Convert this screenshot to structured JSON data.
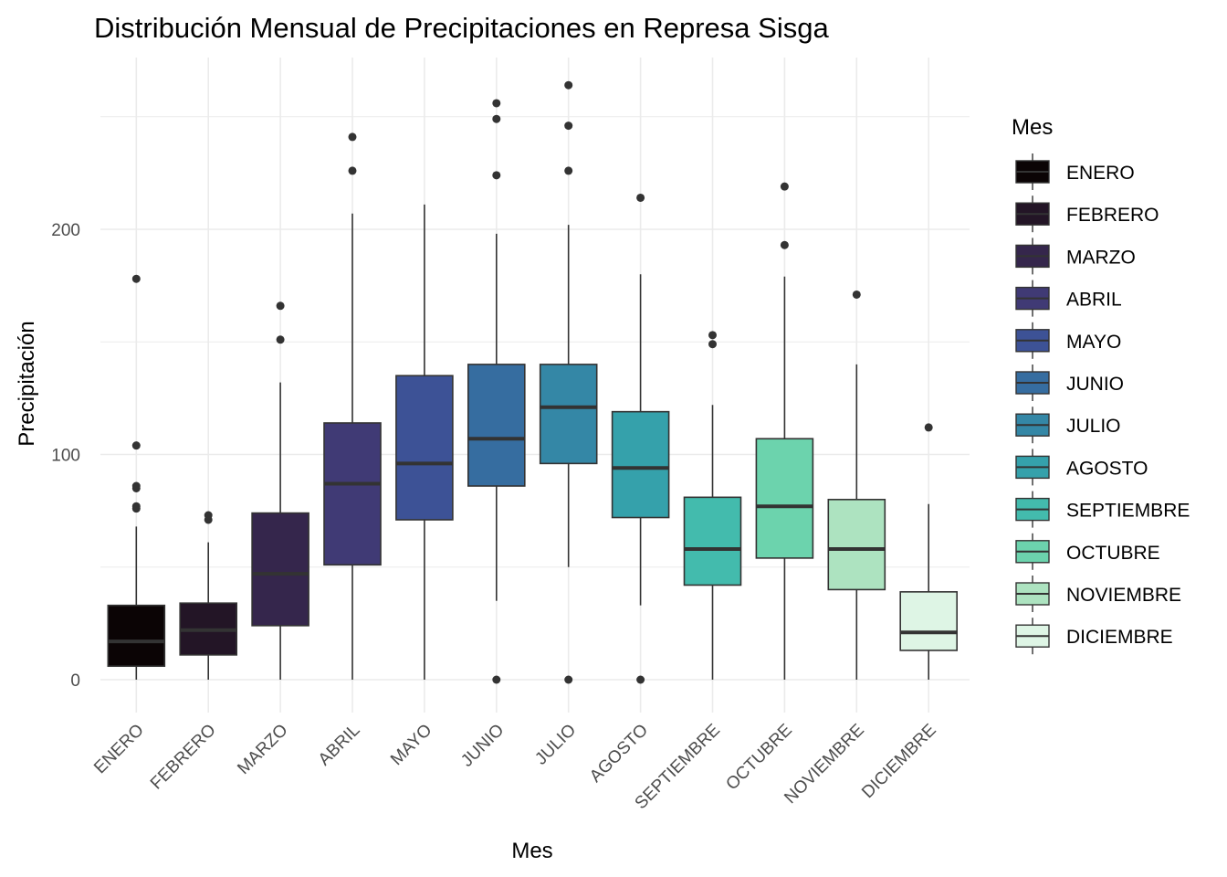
{
  "chart_data": {
    "type": "boxplot",
    "title": "Distribución Mensual de Precipitaciones en Represa Sisga",
    "xlabel": "Mes",
    "ylabel": "Precipitación",
    "ylim": [
      -15,
      277
    ],
    "yticks": [
      0,
      100,
      200
    ],
    "grid": true,
    "legend": {
      "title": "Mes",
      "position": "right"
    },
    "categories": [
      "ENERO",
      "FEBRERO",
      "MARZO",
      "ABRIL",
      "MAYO",
      "JUNIO",
      "JULIO",
      "AGOSTO",
      "SEPTIEMBRE",
      "OCTUBRE",
      "NOVIEMBRE",
      "DICIEMBRE"
    ],
    "colors": [
      "#0b0405",
      "#231526",
      "#35264c",
      "#403a75",
      "#3d5296",
      "#366da0",
      "#3487a6",
      "#35a1ab",
      "#43bbad",
      "#6cd3ad",
      "#ade3c0",
      "#def5e5"
    ],
    "boxes": [
      {
        "category": "ENERO",
        "whisker_low": 0,
        "q1": 6,
        "median": 17,
        "q3": 33,
        "whisker_high": 68,
        "outliers": [
          76,
          77,
          85,
          86,
          104,
          178
        ]
      },
      {
        "category": "FEBRERO",
        "whisker_low": 0,
        "q1": 11,
        "median": 22,
        "q3": 34,
        "whisker_high": 61,
        "outliers": [
          71,
          73
        ]
      },
      {
        "category": "MARZO",
        "whisker_low": 0,
        "q1": 24,
        "median": 47,
        "q3": 74,
        "whisker_high": 132,
        "outliers": [
          151,
          166
        ]
      },
      {
        "category": "ABRIL",
        "whisker_low": 0,
        "q1": 51,
        "median": 87,
        "q3": 114,
        "whisker_high": 207,
        "outliers": [
          226,
          241
        ]
      },
      {
        "category": "MAYO",
        "whisker_low": 0,
        "q1": 71,
        "median": 96,
        "q3": 135,
        "whisker_high": 211,
        "outliers": []
      },
      {
        "category": "JUNIO",
        "whisker_low": 35,
        "q1": 86,
        "median": 107,
        "q3": 140,
        "whisker_high": 198,
        "outliers": [
          0,
          224,
          249,
          256
        ]
      },
      {
        "category": "JULIO",
        "whisker_low": 50,
        "q1": 96,
        "median": 121,
        "q3": 140,
        "whisker_high": 202,
        "outliers": [
          0,
          226,
          246,
          264
        ]
      },
      {
        "category": "AGOSTO",
        "whisker_low": 33,
        "q1": 72,
        "median": 94,
        "q3": 119,
        "whisker_high": 180,
        "outliers": [
          0,
          214
        ]
      },
      {
        "category": "SEPTIEMBRE",
        "whisker_low": 0,
        "q1": 42,
        "median": 58,
        "q3": 81,
        "whisker_high": 122,
        "outliers": [
          149,
          153
        ]
      },
      {
        "category": "OCTUBRE",
        "whisker_low": 0,
        "q1": 54,
        "median": 77,
        "q3": 107,
        "whisker_high": 179,
        "outliers": [
          193,
          219
        ]
      },
      {
        "category": "NOVIEMBRE",
        "whisker_low": 0,
        "q1": 40,
        "median": 58,
        "q3": 80,
        "whisker_high": 140,
        "outliers": [
          171
        ]
      },
      {
        "category": "DICIEMBRE",
        "whisker_low": 0,
        "q1": 13,
        "median": 21,
        "q3": 39,
        "whisker_high": 78,
        "outliers": [
          112
        ]
      }
    ]
  }
}
